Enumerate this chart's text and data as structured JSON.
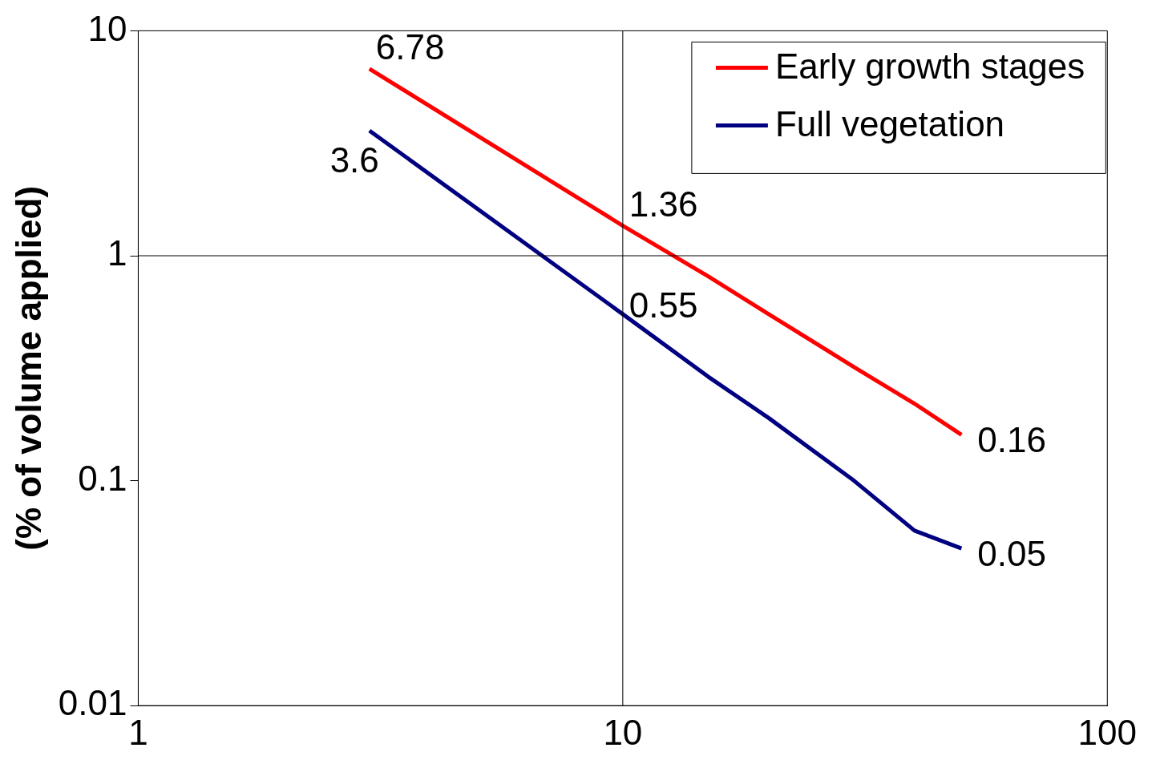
{
  "chart_data": {
    "type": "line",
    "ylabel": "(% of volume applied)",
    "x": [
      3,
      10,
      15,
      20,
      30,
      40,
      50
    ],
    "series": [
      {
        "name": "Early growth stages",
        "color": "#ff0000",
        "values": [
          6.78,
          1.36,
          0.81,
          0.55,
          0.32,
          0.22,
          0.16
        ],
        "value_labels": [
          "6.78",
          "1.36",
          null,
          null,
          null,
          null,
          "0.16"
        ]
      },
      {
        "name": "Full vegetation",
        "color": "#000080",
        "values": [
          3.6,
          0.55,
          0.29,
          0.19,
          0.1,
          0.06,
          0.05
        ],
        "value_labels": [
          "3.6",
          "0.55",
          null,
          null,
          null,
          null,
          "0.05"
        ]
      }
    ],
    "log": "xy",
    "xlim": [
      1,
      100
    ],
    "xticks": [
      1,
      10,
      100
    ],
    "ylim": [
      0.01,
      10
    ],
    "yticks": [
      0.01,
      0.1,
      1,
      10
    ],
    "grid": false,
    "ref_lines": [
      {
        "axis": "x",
        "value": 10,
        "color": "#000000"
      },
      {
        "axis": "y",
        "value": 1,
        "color": "#000000"
      }
    ],
    "legend": "top right",
    "marker": "none",
    "line_style": "solid"
  }
}
